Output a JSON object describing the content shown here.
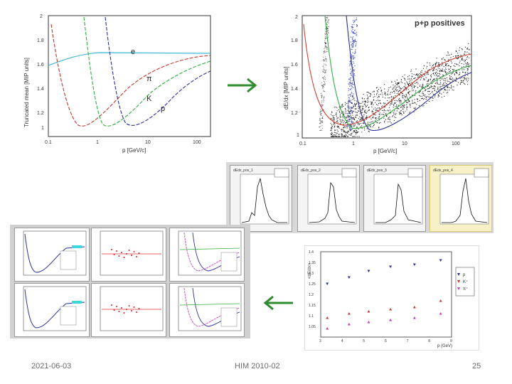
{
  "colors": {
    "e": "#3fb8d8",
    "pi": "#c0392b",
    "K": "#2fae3f",
    "p": "#2a2f9a",
    "arrow": "#2e8b2e",
    "highlight": "#f0e6a0"
  },
  "plot1": {
    "ylabel": "Truncated mean [MIP units]",
    "xlabel": "p [GeV/c]",
    "yticks": [
      "2",
      "1.8",
      "1.6",
      "1.4",
      "1.2",
      "1"
    ],
    "xticks": [
      "0.1",
      "1",
      "10",
      "100"
    ],
    "labels": {
      "e": "e",
      "pi": "π",
      "K": "K",
      "p": "p"
    }
  },
  "plot2": {
    "title": "p+p positives",
    "ylabel": "dE/dx [MIP units]",
    "xlabel": "p [GeV/c]",
    "yticks": [
      "2",
      "1.8",
      "1.6",
      "1.4",
      "1.2",
      "1"
    ],
    "xticks": [
      "0.1",
      "1",
      "10",
      "100"
    ]
  },
  "plot3": {
    "ylabel": "<dE/dx>",
    "xlabel": "p (GeV)",
    "yticks": [
      "1.4",
      "1.35",
      "1.3",
      "1.25",
      "1.2",
      "1.15",
      "1.1",
      "1.05"
    ],
    "xticks": [
      "3",
      "4",
      "5",
      "6",
      "7",
      "8",
      "9"
    ],
    "legend": [
      "p",
      "K⁺",
      "π⁺"
    ]
  },
  "thumbs": [
    {
      "title": "dEdx_pos_1"
    },
    {
      "title": "dEdx_pos_2"
    },
    {
      "title": "dEdx_pos_3"
    },
    {
      "title": "dEdx_pos_4"
    }
  ],
  "chart_data": {
    "type": "scatter",
    "xlabel": "p (GeV)",
    "ylabel": "<dE/dx>",
    "xlim": [
      3,
      9
    ],
    "ylim": [
      1.0,
      1.4
    ],
    "series": [
      {
        "name": "p",
        "x": [
          3.3,
          4.3,
          5.2,
          6.2,
          7.3,
          8.5
        ],
        "y": [
          1.25,
          1.28,
          1.31,
          1.33,
          1.34,
          1.36
        ]
      },
      {
        "name": "K⁺",
        "x": [
          3.3,
          4.3,
          5.2,
          6.2,
          7.3,
          8.5
        ],
        "y": [
          1.09,
          1.11,
          1.12,
          1.13,
          1.14,
          1.17
        ]
      },
      {
        "name": "π⁺",
        "x": [
          3.3,
          4.3,
          5.2,
          6.2,
          7.3,
          8.5
        ],
        "y": [
          1.04,
          1.06,
          1.07,
          1.08,
          1.09,
          1.11
        ]
      }
    ]
  },
  "footer": {
    "date": "2021-06-03",
    "center": "HIM 2010-02",
    "page": "25"
  }
}
